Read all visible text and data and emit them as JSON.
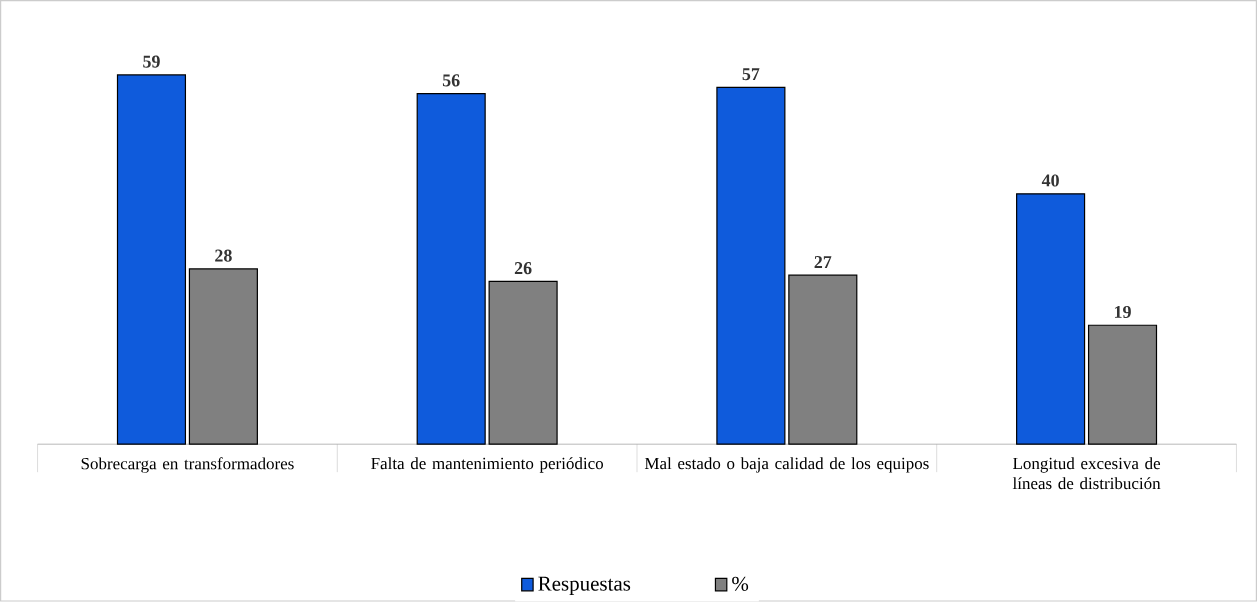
{
  "chart_data": {
    "type": "bar",
    "categories": [
      "Sobrecarga en transformadores",
      "Falta de mantenimiento periódico",
      "Mal estado o baja calidad de los equipos",
      "Longitud excesiva de líneas de distribución"
    ],
    "series": [
      {
        "name": "Respuestas",
        "color": "#0f5bdc",
        "values": [
          59,
          56,
          57,
          40
        ]
      },
      {
        "name": "%",
        "color": "#808080",
        "values": [
          28,
          26,
          27,
          19
        ]
      }
    ],
    "data_labels": true,
    "legend": "bottom"
  }
}
